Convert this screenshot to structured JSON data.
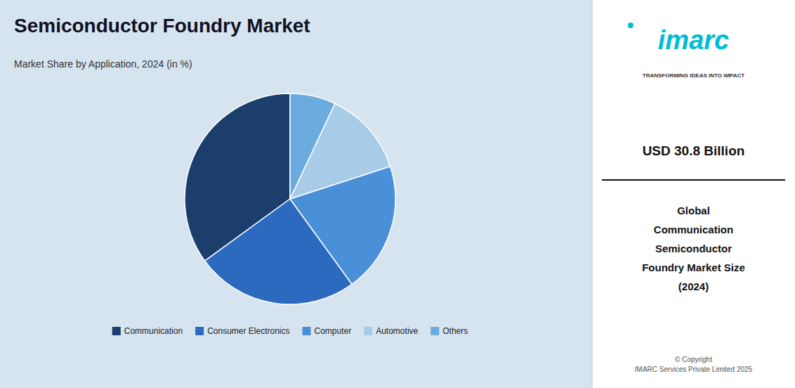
{
  "chart_data": {
    "type": "pie",
    "title": "Semiconductor Foundry Market",
    "subtitle": "Market Share by Application, 2024 (in %)",
    "categories": [
      "Communication",
      "Consumer Electronics",
      "Computer",
      "Automotive",
      "Others"
    ],
    "values": [
      35,
      25,
      20,
      13,
      7
    ],
    "colors": [
      "#1b3e6c",
      "#2b6abf",
      "#4a90d9",
      "#a8cce8",
      "#6aace0"
    ],
    "legend": "bottom",
    "annotations": [
      "imarc",
      "TRANSFORMING IDEAS INTO IMPACT",
      "USD 30.8 Billion",
      "Global\nCommunication\nSemiconductor\nFoundry Market Size\n(2024)",
      "© Copyright\nIMARC Services Private Limited 2025"
    ]
  }
}
